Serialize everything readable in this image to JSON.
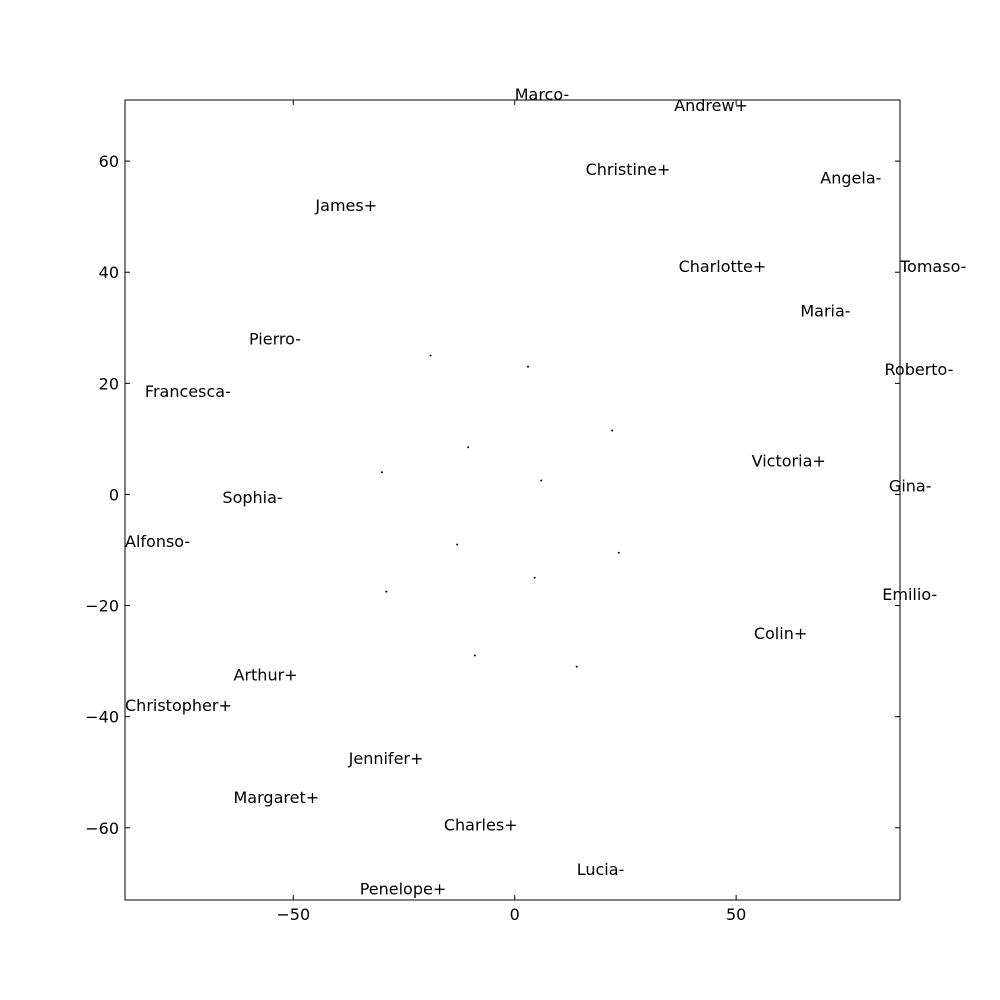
{
  "chart_data": {
    "type": "scatter",
    "title": "",
    "xlabel": "",
    "ylabel": "",
    "xlim": [
      -88,
      87
    ],
    "ylim": [
      -73,
      71
    ],
    "grid": false,
    "x_ticks": [
      -50,
      0,
      50
    ],
    "y_ticks": [
      -60,
      -40,
      -20,
      0,
      20,
      40,
      60
    ],
    "tick_labels": {
      "x": [
        "−50",
        "0",
        "50"
      ],
      "y": [
        "−60",
        "−40",
        "−20",
        "0",
        "20",
        "40",
        "60"
      ]
    },
    "labels": [
      {
        "text": "Marco-",
        "x": 0,
        "y": 71
      },
      {
        "text": "Andrew+",
        "x": 36,
        "y": 69
      },
      {
        "text": "Christine+",
        "x": 16,
        "y": 57.5
      },
      {
        "text": "Angela-",
        "x": 69,
        "y": 56
      },
      {
        "text": "James+",
        "x": -45,
        "y": 51
      },
      {
        "text": "Charlotte+",
        "x": 37,
        "y": 40
      },
      {
        "text": "Tomaso-",
        "x": 87,
        "y": 40
      },
      {
        "text": "Maria-",
        "x": 64.5,
        "y": 32
      },
      {
        "text": "Pierro-",
        "x": -60,
        "y": 27
      },
      {
        "text": "Roberto-",
        "x": 83.5,
        "y": 21.5
      },
      {
        "text": "Francesca-",
        "x": -83.5,
        "y": 17.5
      },
      {
        "text": "Victoria+",
        "x": 53.5,
        "y": 5
      },
      {
        "text": "Gina-",
        "x": 84.5,
        "y": 0.5
      },
      {
        "text": "Sophia-",
        "x": -66,
        "y": -1.5
      },
      {
        "text": "Alfonso-",
        "x": -88,
        "y": -9.5
      },
      {
        "text": "Emilio-",
        "x": 83,
        "y": -19
      },
      {
        "text": "Colin+",
        "x": 54,
        "y": -26
      },
      {
        "text": "Arthur+",
        "x": -63.5,
        "y": -33.5
      },
      {
        "text": "Christopher+",
        "x": -88,
        "y": -39
      },
      {
        "text": "Jennifer+",
        "x": -37.5,
        "y": -48.5
      },
      {
        "text": "Margaret+",
        "x": -63.5,
        "y": -55.5
      },
      {
        "text": "Charles+",
        "x": -16,
        "y": -60.5
      },
      {
        "text": "Lucia-",
        "x": 14,
        "y": -68.5
      },
      {
        "text": "Penelope+",
        "x": -35,
        "y": -72
      }
    ],
    "points": [
      {
        "x": -19,
        "y": 25
      },
      {
        "x": 3,
        "y": 23
      },
      {
        "x": 22,
        "y": 11.5
      },
      {
        "x": -10.5,
        "y": 8.5
      },
      {
        "x": -30,
        "y": 4
      },
      {
        "x": 6,
        "y": 2.5
      },
      {
        "x": -13,
        "y": -9
      },
      {
        "x": 23.5,
        "y": -10.5
      },
      {
        "x": 4.5,
        "y": -15
      },
      {
        "x": -29,
        "y": -17.5
      },
      {
        "x": -9,
        "y": -29
      },
      {
        "x": 14,
        "y": -31
      }
    ]
  }
}
